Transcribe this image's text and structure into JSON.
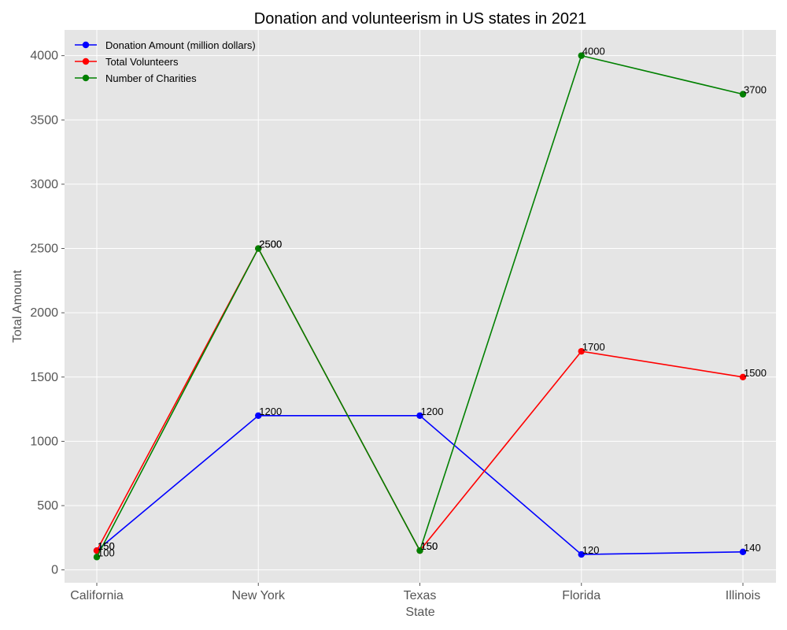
{
  "chart_data": {
    "type": "line",
    "title": "Donation and volunteerism in US states in 2021",
    "xlabel": "State",
    "ylabel": "Total Amount",
    "categories": [
      "California",
      "New York",
      "Texas",
      "Florida",
      "Illinois"
    ],
    "ylim": [
      -100,
      4200
    ],
    "yticks": [
      0,
      500,
      1000,
      1500,
      2000,
      2500,
      3000,
      3500,
      4000
    ],
    "grid": true,
    "legend_position": "top-left",
    "series": [
      {
        "name": "Donation Amount (million dollars)",
        "color": "#0000ff",
        "values": [
          150,
          1200,
          1200,
          120,
          140
        ]
      },
      {
        "name": "Total Volunteers",
        "color": "#ff0000",
        "values": [
          150,
          2500,
          150,
          1700,
          1500
        ]
      },
      {
        "name": "Number of Charities",
        "color": "#008000",
        "values": [
          100,
          2500,
          150,
          4000,
          3700
        ]
      }
    ]
  }
}
